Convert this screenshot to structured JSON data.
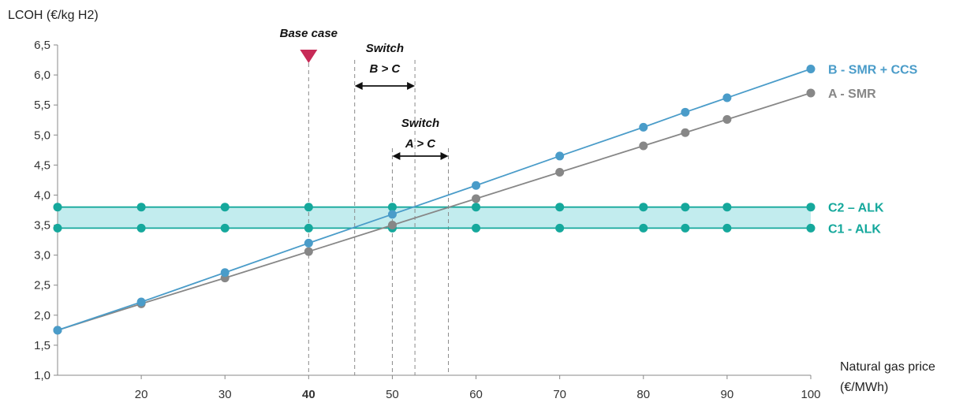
{
  "chart_data": {
    "type": "line",
    "ylabel": "LCOH (€/kg H2)",
    "xlabel_line1": "Natural gas price",
    "xlabel_line2": "(€/MWh)",
    "xlim": [
      10,
      100
    ],
    "ylim": [
      1.0,
      6.5
    ],
    "yticks": [
      "1,0",
      "1,5",
      "2,0",
      "2,5",
      "3,0",
      "3,5",
      "4,0",
      "4,5",
      "5,0",
      "5,5",
      "6,0",
      "6,5"
    ],
    "xticks": [
      "20",
      "30",
      "40",
      "50",
      "60",
      "70",
      "80",
      "90",
      "100"
    ],
    "highlight_tick": "40",
    "colors": {
      "smr_ccs": "#4a9cc9",
      "smr": "#878787",
      "alk": "#15a89c",
      "band": "#c2ecee",
      "marker": "#c72a57"
    },
    "series": [
      {
        "name": "B - SMR + CCS",
        "x": [
          10,
          20,
          30,
          40,
          50,
          60,
          70,
          80,
          85,
          90,
          100
        ],
        "y": [
          1.75,
          2.22,
          2.71,
          3.2,
          3.68,
          4.16,
          4.65,
          5.13,
          5.38,
          5.62,
          6.1
        ]
      },
      {
        "name": "A - SMR",
        "x": [
          10,
          20,
          30,
          40,
          50,
          60,
          70,
          80,
          85,
          90,
          100
        ],
        "y": [
          1.75,
          2.19,
          2.62,
          3.06,
          3.5,
          3.94,
          4.38,
          4.82,
          5.04,
          5.26,
          5.7
        ]
      },
      {
        "name": "C2 – ALK",
        "x": [
          10,
          20,
          30,
          40,
          50,
          60,
          70,
          80,
          85,
          90,
          100
        ],
        "y": [
          3.8,
          3.8,
          3.8,
          3.8,
          3.8,
          3.8,
          3.8,
          3.8,
          3.8,
          3.8,
          3.8
        ]
      },
      {
        "name": "C1 - ALK",
        "x": [
          10,
          20,
          30,
          40,
          50,
          60,
          70,
          80,
          85,
          90,
          100
        ],
        "y": [
          3.45,
          3.45,
          3.45,
          3.45,
          3.45,
          3.45,
          3.45,
          3.45,
          3.45,
          3.45,
          3.45
        ]
      }
    ],
    "annotations": {
      "base_case": {
        "label": "Base case",
        "x": 40
      },
      "switch_bc": {
        "line1": "Switch",
        "line2": "B > C",
        "x_from": 45.5,
        "x_to": 52.7
      },
      "switch_ac": {
        "line1": "Switch",
        "line2": "A > C",
        "x_from": 50,
        "x_to": 56.7
      }
    }
  }
}
